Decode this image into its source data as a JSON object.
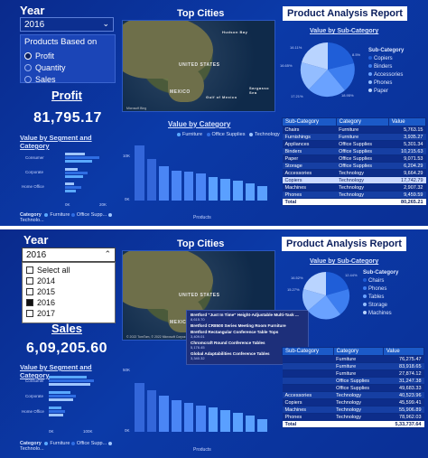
{
  "top": {
    "year_title": "Year",
    "year_value": "2016",
    "measure_slicer": {
      "title": "Products Based on",
      "options": [
        {
          "label": "Profit",
          "selected": true
        },
        {
          "label": "Quantity",
          "selected": false
        },
        {
          "label": "Sales",
          "selected": false
        }
      ]
    },
    "kpi_title": "Profit",
    "kpi_value": "81,795.17",
    "segment_chart": {
      "title": "Value by Segment and Category",
      "segments": [
        "Consumer",
        "Corporate",
        "Home Office"
      ],
      "x_ticks": [
        "0K",
        "20K"
      ],
      "legend_label": "Category",
      "legend": [
        "Furniture",
        "Office Supp...",
        "Technolo..."
      ]
    },
    "map": {
      "title": "Top Cities",
      "labels": [
        "UNITED STATES",
        "MEXICO",
        "Gulf of Mexico",
        "Hudson Bay",
        "Sargasso Sea"
      ],
      "credit": "Microsoft Bing"
    },
    "category_chart": {
      "title": "Value by Category",
      "legend": [
        "Furniture",
        "Office Supplies",
        "Technology"
      ],
      "y_ticks": [
        "10K",
        "0K"
      ],
      "x_title": "Products",
      "bar_heights": [
        0.95,
        0.72,
        0.6,
        0.52,
        0.5,
        0.47,
        0.4,
        0.37,
        0.34,
        0.3,
        0.25
      ]
    },
    "report_title": "Product Analysis Report",
    "pie": {
      "title": "Value by Sub-Category",
      "legend_title": "Sub-Category",
      "legend": [
        "Copiers",
        "Binders",
        "Accessories",
        "Phones",
        "Paper"
      ],
      "pct_labels": [
        "16.11%",
        "16.65%",
        "17.21%",
        "18.95%",
        "8.5%"
      ]
    },
    "table": {
      "headers": [
        "Sub-Category",
        "Category",
        "Value"
      ],
      "rows": [
        [
          "Chairs",
          "Furniture",
          "5,763.15"
        ],
        [
          "Furnishings",
          "Furniture",
          "3,935.27"
        ],
        [
          "Appliances",
          "Office Supplies",
          "5,301.34"
        ],
        [
          "Binders",
          "Office Supplies",
          "10,215.63"
        ],
        [
          "Paper",
          "Office Supplies",
          "9,071.53"
        ],
        [
          "Storage",
          "Office Supplies",
          "6,204.29"
        ],
        [
          "Accessories",
          "Technology",
          "9,664.29"
        ],
        [
          "Copiers",
          "Technology",
          "17,742.79"
        ],
        [
          "Machines",
          "Technology",
          "2,907.32"
        ],
        [
          "Phones",
          "Technology",
          "9,459.59"
        ]
      ],
      "total_label": "Total",
      "total_value": "80,265.21"
    }
  },
  "bottom": {
    "year_title": "Year",
    "year_value": "2016",
    "dropdown_options": [
      {
        "label": "Select all",
        "checked": false
      },
      {
        "label": "2014",
        "checked": false
      },
      {
        "label": "2015",
        "checked": false
      },
      {
        "label": "2016",
        "checked": true
      },
      {
        "label": "2017",
        "checked": false
      }
    ],
    "kpi_title": "Sales",
    "kpi_value": "6,09,205.60",
    "segment_chart": {
      "title": "Value by Segment and Category",
      "segments": [
        "Consumer",
        "Corporate",
        "Home Office"
      ],
      "x_ticks": [
        "0K",
        "100K"
      ],
      "legend_label": "Category",
      "legend": [
        "Furniture",
        "Office Supp...",
        "Technolo..."
      ]
    },
    "map": {
      "title": "Top Cities",
      "labels": [
        "UNITED STATES",
        "MEXICO"
      ],
      "credit": "© 2022 TomTom, © 2022 Microsoft Corporation"
    },
    "tooltip_items": [
      {
        "name": "Bretford \"Just In Time\" Height-Adjustable Multi-Task ...",
        "value": "8,615.70"
      },
      {
        "name": "Bretford CR8500 Series Meeting Room Furniture",
        "value": ""
      },
      {
        "name": "Bretford Rectangular Conference Table Tops",
        "value": "3,409.01"
      },
      {
        "name": "Chromcraft Round Conference Tables",
        "value": "5,176.45"
      },
      {
        "name": "Global Adaptabilities Conference Tables",
        "value": "3,340.32"
      }
    ],
    "category_chart": {
      "y_ticks": [
        "50K",
        "0K"
      ],
      "x_title": "Products",
      "bar_heights": [
        0.85,
        0.72,
        0.62,
        0.55,
        0.5,
        0.45,
        0.42,
        0.38,
        0.33,
        0.28,
        0.22
      ]
    },
    "report_title": "Product Analysis Report",
    "pie": {
      "title": "Value by Sub-Category",
      "legend_title": "Sub-Category",
      "legend": [
        "Chairs",
        "Phones",
        "Tables",
        "Storage",
        "Machines"
      ],
      "pct_labels": [
        "16.52%",
        "15.27%",
        "12.44%"
      ]
    },
    "table": {
      "headers": [
        "Sub-Category",
        "Category",
        "Value"
      ],
      "rows": [
        [
          "",
          "Furniture",
          "76,275.47"
        ],
        [
          "",
          "Furniture",
          "83,918.65"
        ],
        [
          "",
          "Furniture",
          "27,874.12"
        ],
        [
          "",
          "Office Supplies",
          "31,247.38"
        ],
        [
          "",
          "Office Supplies",
          "49,683.33"
        ],
        [
          "Accessories",
          "Technology",
          "40,523.96"
        ],
        [
          "Copiers",
          "Technology",
          "45,599.41"
        ],
        [
          "Machines",
          "Technology",
          "55,906.89"
        ],
        [
          "Phones",
          "Technology",
          "78,962.03"
        ]
      ],
      "total_label": "Total",
      "total_value": "5,33,737.64"
    }
  },
  "colors": {
    "furniture": "#5aa9ff",
    "office_supplies": "#2f6de3",
    "technology": "#9fc6ff",
    "pie": [
      "#1f5ed8",
      "#3d7ef0",
      "#6aa2ff",
      "#93bdff",
      "#b9d4ff"
    ]
  }
}
